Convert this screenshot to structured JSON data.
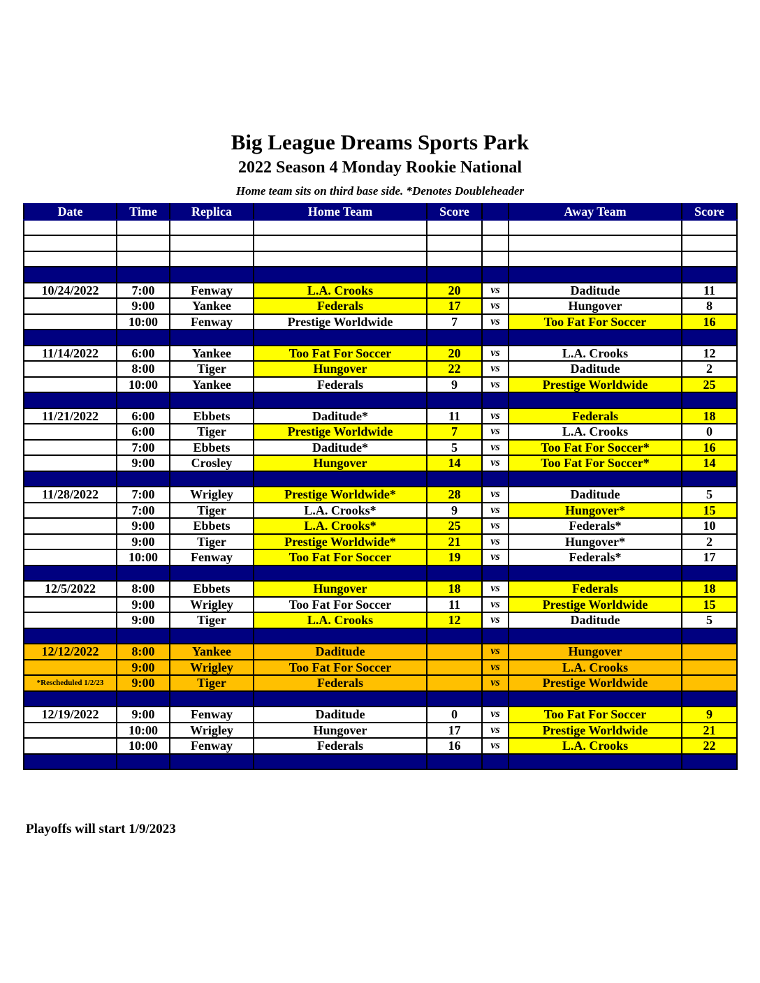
{
  "title": "Big League Dreams Sports Park",
  "subtitle": "2022 Season 4 Monday Rookie National",
  "note": "Home team sits on third base side.  *Denotes Doubleheader",
  "footer": "Playoffs will start 1/9/2023",
  "colors": {
    "header": "#000080",
    "winner": "#FFFF00",
    "rescheduled": "#FFC000"
  },
  "columns": [
    "Date",
    "Time",
    "Replica",
    "Home Team",
    "Score",
    "",
    "Away Team",
    "Score"
  ],
  "rows": [
    {
      "type": "blank"
    },
    {
      "type": "blank"
    },
    {
      "type": "blank"
    },
    {
      "type": "sep"
    },
    {
      "type": "game",
      "date": "10/24/2022",
      "time": "7:00",
      "replica": "Fenway",
      "home": "L.A. Crooks",
      "home_score": "20",
      "vs": "vs",
      "away": "Daditude",
      "away_score": "11",
      "winner": "home"
    },
    {
      "type": "game",
      "date": "",
      "time": "9:00",
      "replica": "Yankee",
      "home": "Federals",
      "home_score": "17",
      "vs": "vs",
      "away": "Hungover",
      "away_score": "8",
      "winner": "home"
    },
    {
      "type": "game",
      "date": "",
      "time": "10:00",
      "replica": "Fenway",
      "home": "Prestige Worldwide",
      "home_score": "7",
      "vs": "vs",
      "away": "Too Fat For Soccer",
      "away_score": "16",
      "winner": "away"
    },
    {
      "type": "sep"
    },
    {
      "type": "game",
      "date": "11/14/2022",
      "time": "6:00",
      "replica": "Yankee",
      "home": "Too Fat For Soccer",
      "home_score": "20",
      "vs": "vs",
      "away": "L.A. Crooks",
      "away_score": "12",
      "winner": "home"
    },
    {
      "type": "game",
      "date": "",
      "time": "8:00",
      "replica": "Tiger",
      "home": "Hungover",
      "home_score": "22",
      "vs": "vs",
      "away": "Daditude",
      "away_score": "2",
      "winner": "home"
    },
    {
      "type": "game",
      "date": "",
      "time": "10:00",
      "replica": "Yankee",
      "home": "Federals",
      "home_score": "9",
      "vs": "vs",
      "away": "Prestige Worldwide",
      "away_score": "25",
      "winner": "away"
    },
    {
      "type": "sep"
    },
    {
      "type": "game",
      "date": "11/21/2022",
      "time": "6:00",
      "replica": "Ebbets",
      "home": "Daditude*",
      "home_score": "11",
      "vs": "vs",
      "away": "Federals",
      "away_score": "18",
      "winner": "away"
    },
    {
      "type": "game",
      "date": "",
      "time": "6:00",
      "replica": "Tiger",
      "home": "Prestige Worldwide",
      "home_score": "7",
      "vs": "vs",
      "away": "L.A. Crooks",
      "away_score": "0",
      "winner": "home"
    },
    {
      "type": "game",
      "date": "",
      "time": "7:00",
      "replica": "Ebbets",
      "home": "Daditude*",
      "home_score": "5",
      "vs": "vs",
      "away": "Too Fat For Soccer*",
      "away_score": "16",
      "winner": "away"
    },
    {
      "type": "game",
      "date": "",
      "time": "9:00",
      "replica": "Crosley",
      "home": "Hungover",
      "home_score": "14",
      "vs": "vs",
      "away": "Too Fat For Soccer*",
      "away_score": "14",
      "winner": "both"
    },
    {
      "type": "sep"
    },
    {
      "type": "game",
      "date": "11/28/2022",
      "time": "7:00",
      "replica": "Wrigley",
      "home": "Prestige Worldwide*",
      "home_score": "28",
      "vs": "vs",
      "away": "Daditude",
      "away_score": "5",
      "winner": "home"
    },
    {
      "type": "game",
      "date": "",
      "time": "7:00",
      "replica": "Tiger",
      "home": "L.A. Crooks*",
      "home_score": "9",
      "vs": "vs",
      "away": "Hungover*",
      "away_score": "15",
      "winner": "away"
    },
    {
      "type": "game",
      "date": "",
      "time": "9:00",
      "replica": "Ebbets",
      "home": "L.A. Crooks*",
      "home_score": "25",
      "vs": "vs",
      "away": "Federals*",
      "away_score": "10",
      "winner": "home"
    },
    {
      "type": "game",
      "date": "",
      "time": "9:00",
      "replica": "Tiger",
      "home": "Prestige Worldwide*",
      "home_score": "21",
      "vs": "vs",
      "away": "Hungover*",
      "away_score": "2",
      "winner": "home"
    },
    {
      "type": "game",
      "date": "",
      "time": "10:00",
      "replica": "Fenway",
      "home": "Too Fat For Soccer",
      "home_score": "19",
      "vs": "vs",
      "away": "Federals*",
      "away_score": "17",
      "winner": "home"
    },
    {
      "type": "sep"
    },
    {
      "type": "game",
      "date": "12/5/2022",
      "time": "8:00",
      "replica": "Ebbets",
      "home": "Hungover",
      "home_score": "18",
      "vs": "vs",
      "away": "Federals",
      "away_score": "18",
      "winner": "both"
    },
    {
      "type": "game",
      "date": "",
      "time": "9:00",
      "replica": "Wrigley",
      "home": "Too Fat For Soccer",
      "home_score": "11",
      "vs": "vs",
      "away": "Prestige Worldwide",
      "away_score": "15",
      "winner": "away"
    },
    {
      "type": "game",
      "date": "",
      "time": "9:00",
      "replica": "Tiger",
      "home": "L.A. Crooks",
      "home_score": "12",
      "vs": "vs",
      "away": "Daditude",
      "away_score": "5",
      "winner": "home"
    },
    {
      "type": "sep"
    },
    {
      "type": "game",
      "style": "orange",
      "date": "12/12/2022",
      "time": "8:00",
      "replica": "Yankee",
      "home": "Daditude",
      "home_score": "",
      "vs": "vs",
      "away": "Hungover",
      "away_score": "",
      "winner": "none"
    },
    {
      "type": "game",
      "style": "orange",
      "date": "",
      "time": "9:00",
      "replica": "Wrigley",
      "home": "Too Fat For Soccer",
      "home_score": "",
      "vs": "vs",
      "away": "L.A. Crooks",
      "away_score": "",
      "winner": "none"
    },
    {
      "type": "game",
      "style": "orange",
      "date": "*Rescheduled 1/2/23",
      "date_note": true,
      "time": "9:00",
      "replica": "Tiger",
      "home": "Federals",
      "home_score": "",
      "vs": "vs",
      "away": "Prestige Worldwide",
      "away_score": "",
      "winner": "none"
    },
    {
      "type": "sep"
    },
    {
      "type": "game",
      "date": "12/19/2022",
      "time": "9:00",
      "replica": "Fenway",
      "home": "Daditude",
      "home_score": "0",
      "vs": "vs",
      "away": "Too Fat For Soccer",
      "away_score": "9",
      "winner": "away"
    },
    {
      "type": "game",
      "date": "",
      "time": "10:00",
      "replica": "Wrigley",
      "home": "Hungover",
      "home_score": "17",
      "vs": "vs",
      "away": "Prestige Worldwide",
      "away_score": "21",
      "winner": "away"
    },
    {
      "type": "game",
      "date": "",
      "time": "10:00",
      "replica": "Fenway",
      "home": "Federals",
      "home_score": "16",
      "vs": "vs",
      "away": "L.A. Crooks",
      "away_score": "22",
      "winner": "away"
    },
    {
      "type": "sep"
    }
  ]
}
